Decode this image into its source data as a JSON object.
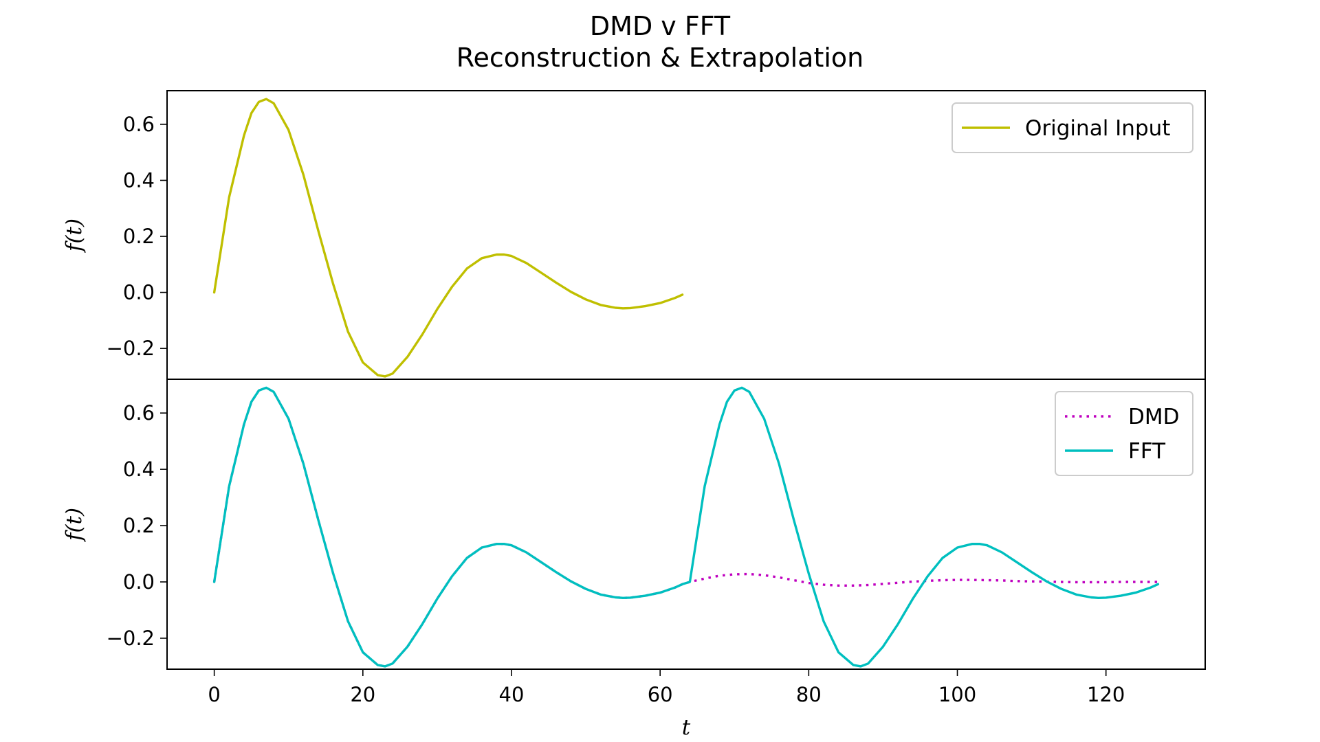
{
  "title": "DMD v FFT",
  "subtitle": "Reconstruction & Extrapolation",
  "colors": {
    "original": "#bfbf00",
    "dmd": "#bf00bf",
    "fft": "#00bfbf"
  },
  "chart_data": [
    {
      "type": "line",
      "panel": "top",
      "ylabel": "f(t)",
      "xlim": [
        -6.35,
        133.35
      ],
      "ylim": [
        -0.31,
        0.72
      ],
      "yticks": [
        -0.2,
        0.0,
        0.2,
        0.4,
        0.6
      ],
      "ytick_labels": [
        "−0.2",
        "0.0",
        "0.2",
        "0.4",
        "0.6"
      ],
      "grid": false,
      "legend_position": "top-right",
      "series": [
        {
          "name": "Original Input",
          "style": "solid",
          "color": "#bfbf00",
          "x": [
            0,
            2,
            4,
            5,
            6,
            7,
            8,
            10,
            12,
            14,
            16,
            18,
            20,
            22,
            23,
            24,
            26,
            28,
            30,
            32,
            34,
            36,
            38,
            39,
            40,
            42,
            44,
            46,
            48,
            50,
            52,
            54,
            55,
            56,
            58,
            60,
            62,
            63
          ],
          "y": [
            0.0,
            0.34,
            0.56,
            0.64,
            0.68,
            0.69,
            0.675,
            0.58,
            0.42,
            0.22,
            0.03,
            -0.14,
            -0.25,
            -0.295,
            -0.3,
            -0.29,
            -0.23,
            -0.15,
            -0.06,
            0.02,
            0.085,
            0.122,
            0.135,
            0.135,
            0.13,
            0.105,
            0.07,
            0.035,
            0.002,
            -0.025,
            -0.045,
            -0.055,
            -0.057,
            -0.056,
            -0.049,
            -0.038,
            -0.02,
            -0.008
          ]
        }
      ]
    },
    {
      "type": "line",
      "panel": "bottom",
      "xlabel": "t",
      "ylabel": "f(t)",
      "xlim": [
        -6.35,
        133.35
      ],
      "ylim": [
        -0.31,
        0.72
      ],
      "xticks": [
        0,
        20,
        40,
        60,
        80,
        100,
        120
      ],
      "xtick_labels": [
        "0",
        "20",
        "40",
        "60",
        "80",
        "100",
        "120"
      ],
      "yticks": [
        -0.2,
        0.0,
        0.2,
        0.4,
        0.6
      ],
      "ytick_labels": [
        "−0.2",
        "0.0",
        "0.2",
        "0.4",
        "0.6"
      ],
      "grid": false,
      "legend_position": "top-right",
      "series": [
        {
          "name": "DMD",
          "style": "dotted",
          "color": "#bf00bf",
          "x": [
            0,
            2,
            4,
            5,
            6,
            7,
            8,
            10,
            12,
            14,
            16,
            18,
            20,
            22,
            23,
            24,
            26,
            28,
            30,
            32,
            34,
            36,
            38,
            39,
            40,
            42,
            44,
            46,
            48,
            50,
            52,
            54,
            55,
            56,
            58,
            60,
            62,
            63,
            64,
            66,
            68,
            70,
            72,
            74,
            76,
            78,
            80,
            82,
            84,
            86,
            88,
            90,
            92,
            94,
            96,
            98,
            100,
            102,
            104,
            106,
            108,
            110,
            112,
            114,
            116,
            118,
            120,
            122,
            124,
            126,
            127
          ],
          "y": [
            0.0,
            0.34,
            0.56,
            0.64,
            0.68,
            0.69,
            0.675,
            0.58,
            0.42,
            0.22,
            0.03,
            -0.14,
            -0.25,
            -0.295,
            -0.3,
            -0.29,
            -0.23,
            -0.15,
            -0.06,
            0.02,
            0.085,
            0.122,
            0.135,
            0.135,
            0.13,
            0.105,
            0.07,
            0.035,
            0.002,
            -0.025,
            -0.045,
            -0.055,
            -0.057,
            -0.056,
            -0.049,
            -0.038,
            -0.02,
            -0.008,
            0.0,
            0.012,
            0.022,
            0.027,
            0.028,
            0.024,
            0.016,
            0.006,
            -0.004,
            -0.01,
            -0.013,
            -0.013,
            -0.011,
            -0.007,
            -0.003,
            0.001,
            0.004,
            0.006,
            0.007,
            0.007,
            0.006,
            0.005,
            0.003,
            0.002,
            0.001,
            0.0,
            -0.001,
            -0.001,
            -0.001,
            0.0,
            0.0,
            0.0,
            0.0
          ]
        },
        {
          "name": "FFT",
          "style": "solid",
          "color": "#00bfbf",
          "x": [
            0,
            2,
            4,
            5,
            6,
            7,
            8,
            10,
            12,
            14,
            16,
            18,
            20,
            22,
            23,
            24,
            26,
            28,
            30,
            32,
            34,
            36,
            38,
            39,
            40,
            42,
            44,
            46,
            48,
            50,
            52,
            54,
            55,
            56,
            58,
            60,
            62,
            63,
            64,
            66,
            68,
            69,
            70,
            71,
            72,
            74,
            76,
            78,
            80,
            82,
            84,
            86,
            87,
            88,
            90,
            92,
            94,
            96,
            98,
            100,
            102,
            103,
            104,
            106,
            108,
            110,
            112,
            114,
            116,
            118,
            119,
            120,
            122,
            124,
            126,
            127
          ],
          "y": [
            0.0,
            0.34,
            0.56,
            0.64,
            0.68,
            0.69,
            0.675,
            0.58,
            0.42,
            0.22,
            0.03,
            -0.14,
            -0.25,
            -0.295,
            -0.3,
            -0.29,
            -0.23,
            -0.15,
            -0.06,
            0.02,
            0.085,
            0.122,
            0.135,
            0.135,
            0.13,
            0.105,
            0.07,
            0.035,
            0.002,
            -0.025,
            -0.045,
            -0.055,
            -0.057,
            -0.056,
            -0.049,
            -0.038,
            -0.02,
            -0.008,
            0.0,
            0.34,
            0.56,
            0.64,
            0.68,
            0.69,
            0.675,
            0.58,
            0.42,
            0.22,
            0.03,
            -0.14,
            -0.25,
            -0.295,
            -0.3,
            -0.29,
            -0.23,
            -0.15,
            -0.06,
            0.02,
            0.085,
            0.122,
            0.135,
            0.135,
            0.13,
            0.105,
            0.07,
            0.035,
            0.002,
            -0.025,
            -0.045,
            -0.055,
            -0.057,
            -0.056,
            -0.049,
            -0.038,
            -0.02,
            -0.008
          ]
        }
      ]
    }
  ]
}
